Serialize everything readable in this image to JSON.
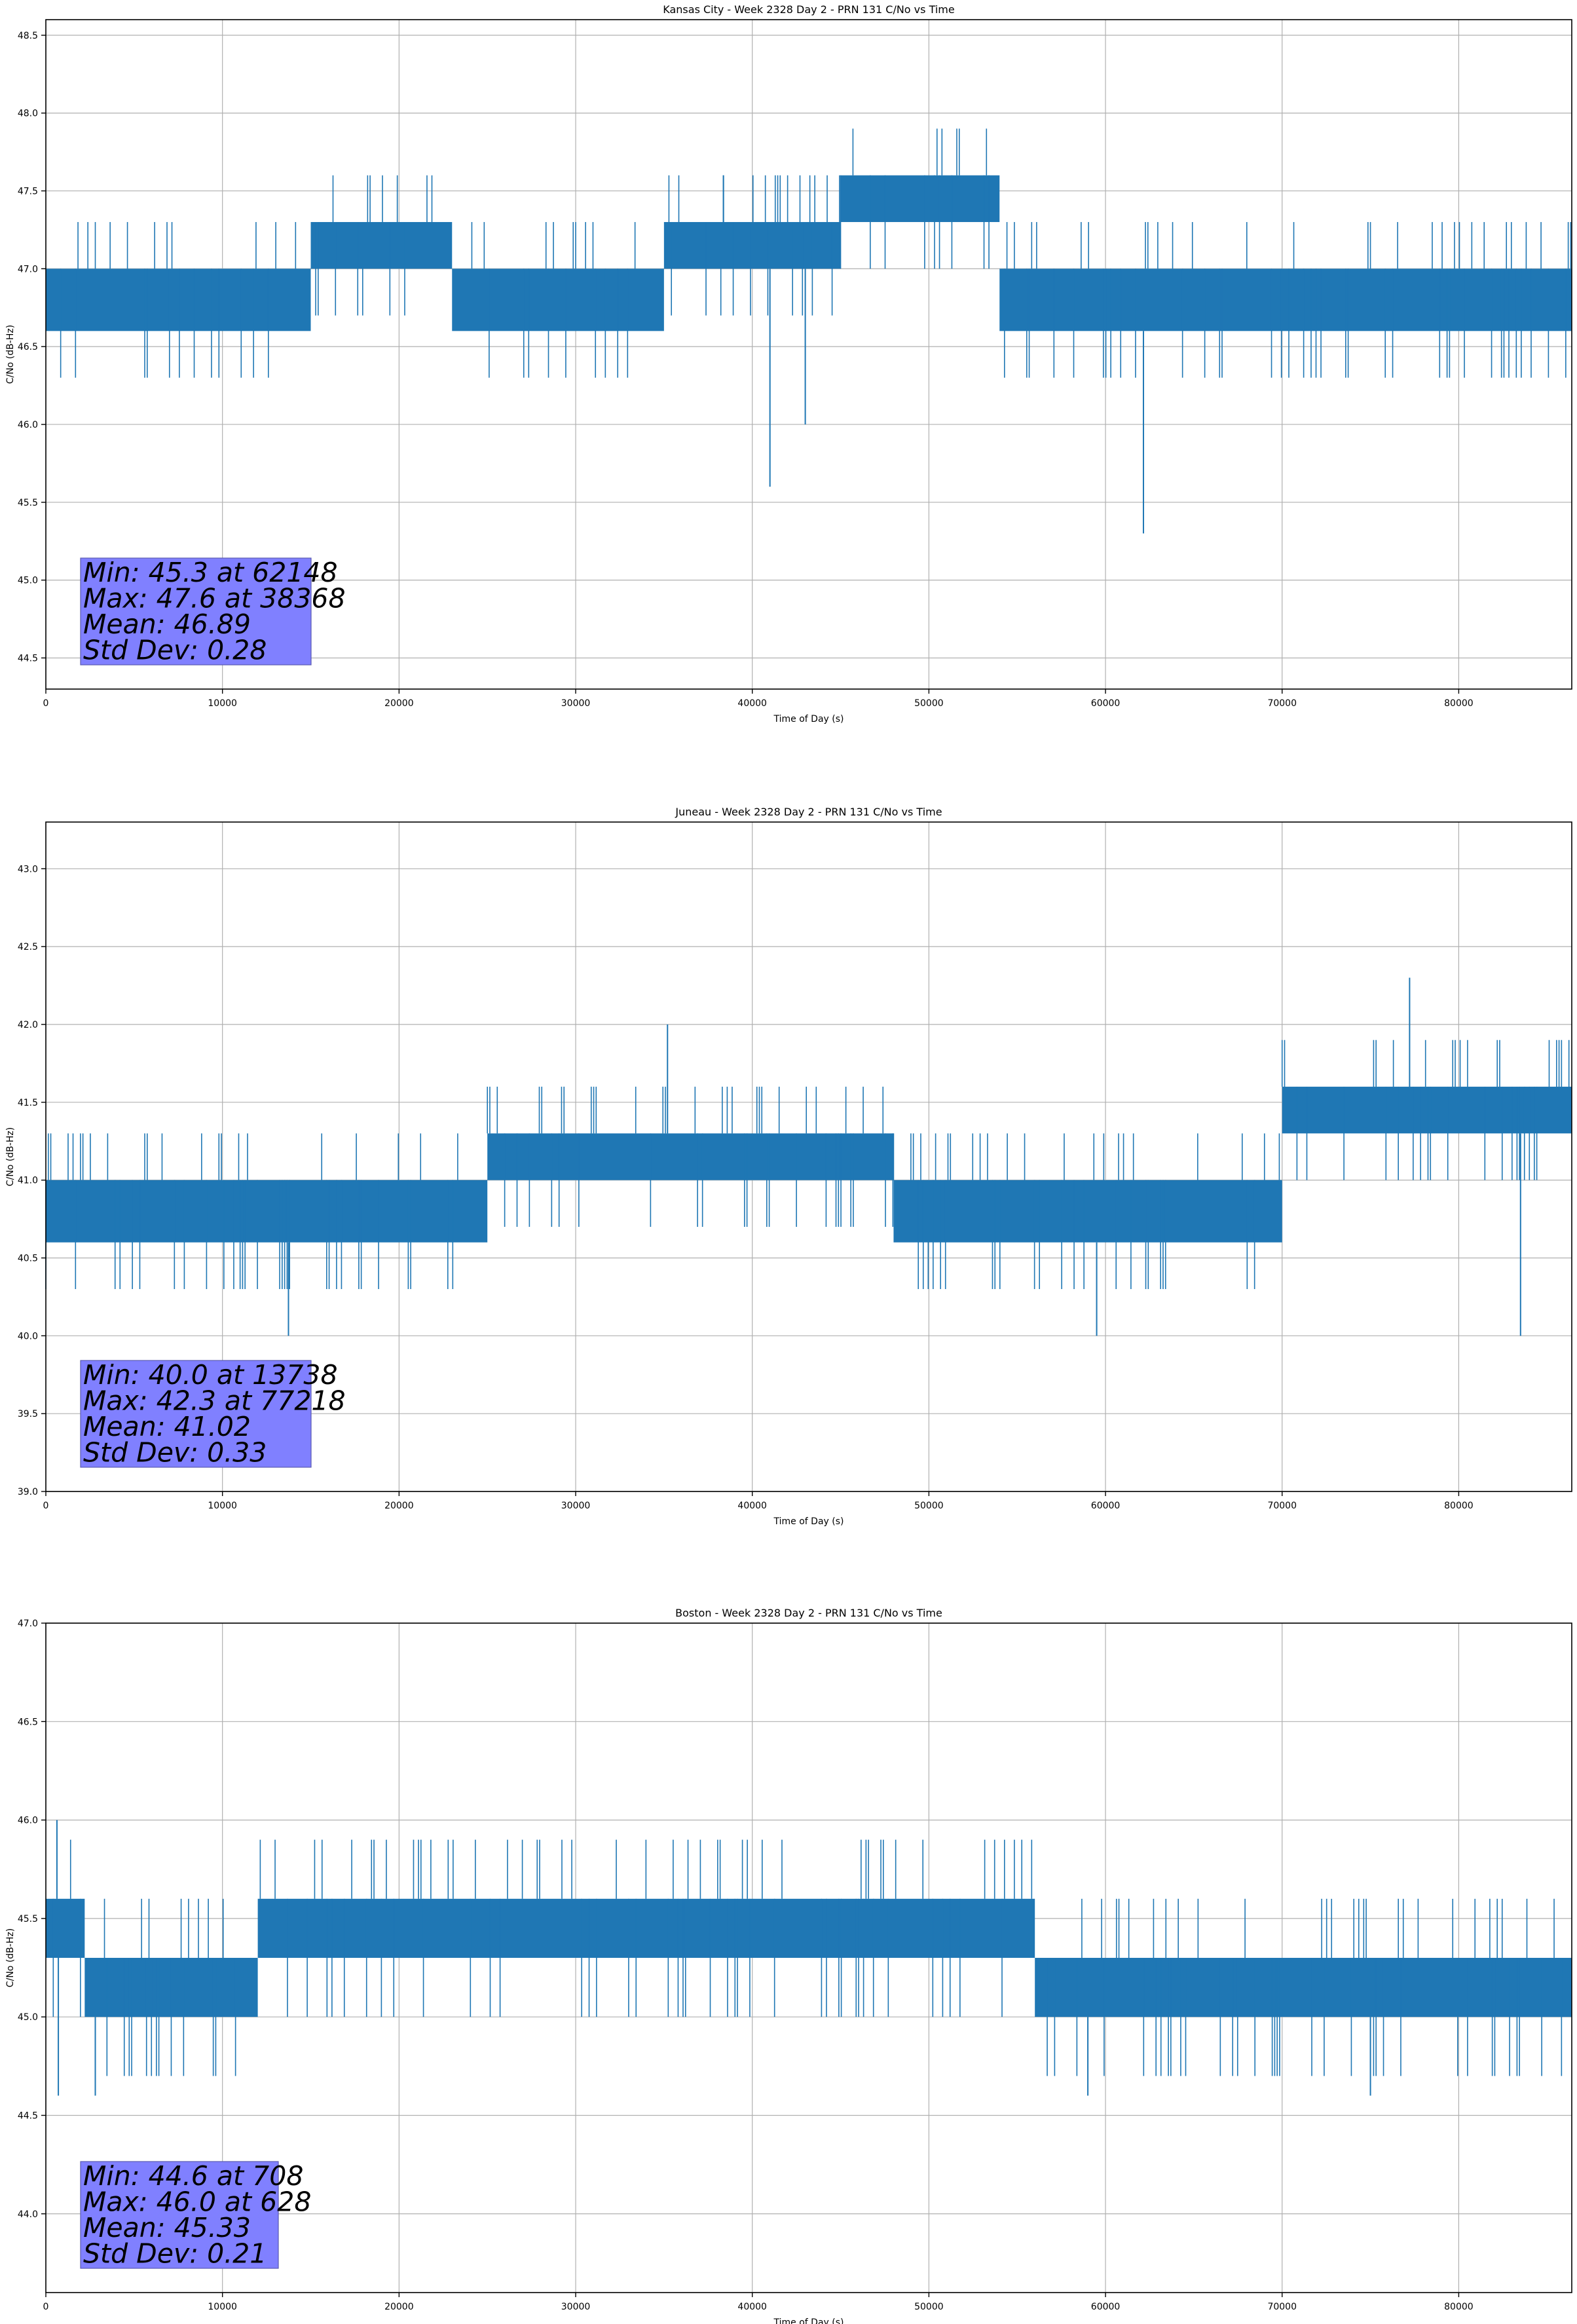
{
  "chart_data": [
    {
      "type": "line",
      "title": "Kansas City - Week 2328 Day 2 - PRN 131 C/No vs Time",
      "xlabel": "Time of Day (s)",
      "ylabel": "C/No (dB-Hz)",
      "xlim": [
        0,
        86400
      ],
      "ylim": [
        44.3,
        48.6
      ],
      "xticks": [
        0,
        10000,
        20000,
        30000,
        40000,
        50000,
        60000,
        70000,
        80000
      ],
      "yticks": [
        44.5,
        45.0,
        45.5,
        46.0,
        46.5,
        47.0,
        47.5,
        48.0,
        48.5
      ],
      "grid": true,
      "color": "#1f77b4",
      "series": [
        {
          "segments": [
            {
              "x0": 0,
              "x1": 15000,
              "low": 46.6,
              "high": 47.0
            },
            {
              "x0": 15000,
              "x1": 23000,
              "low": 47.0,
              "high": 47.3
            },
            {
              "x0": 23000,
              "x1": 35000,
              "low": 46.6,
              "high": 47.0
            },
            {
              "x0": 35000,
              "x1": 45000,
              "low": 47.0,
              "high": 47.3
            },
            {
              "x0": 45000,
              "x1": 54000,
              "low": 47.3,
              "high": 47.6
            },
            {
              "x0": 54000,
              "x1": 86400,
              "low": 46.6,
              "high": 47.0
            }
          ],
          "spikes": [
            {
              "x": 41000,
              "y": 45.6
            },
            {
              "x": 43000,
              "y": 46.0
            },
            {
              "x": 62148,
              "y": 45.3
            },
            {
              "x": 38368,
              "y": 47.6
            }
          ]
        }
      ],
      "stats": {
        "min": "Min: 45.3 at 62148",
        "max": "Max: 47.6 at 38368",
        "mean": "Mean: 46.89",
        "std": "Std Dev: 0.28"
      }
    },
    {
      "type": "line",
      "title": "Juneau - Week 2328 Day 2 - PRN 131 C/No vs Time",
      "xlabel": "Time of Day (s)",
      "ylabel": "C/No (dB-Hz)",
      "xlim": [
        0,
        86400
      ],
      "ylim": [
        39.0,
        43.3
      ],
      "xticks": [
        0,
        10000,
        20000,
        30000,
        40000,
        50000,
        60000,
        70000,
        80000
      ],
      "yticks": [
        39.0,
        39.5,
        40.0,
        40.5,
        41.0,
        41.5,
        42.0,
        42.5,
        43.0
      ],
      "grid": true,
      "color": "#1f77b4",
      "series": [
        {
          "segments": [
            {
              "x0": 0,
              "x1": 11000,
              "low": 40.6,
              "high": 41.0
            },
            {
              "x0": 11000,
              "x1": 25000,
              "low": 40.6,
              "high": 41.0
            },
            {
              "x0": 25000,
              "x1": 48000,
              "low": 41.0,
              "high": 41.3
            },
            {
              "x0": 48000,
              "x1": 70000,
              "low": 40.6,
              "high": 41.0
            },
            {
              "x0": 70000,
              "x1": 86400,
              "low": 41.3,
              "high": 41.6
            }
          ],
          "spikes": [
            {
              "x": 13738,
              "y": 40.0
            },
            {
              "x": 59500,
              "y": 40.0
            },
            {
              "x": 83500,
              "y": 40.0
            },
            {
              "x": 77218,
              "y": 42.3
            },
            {
              "x": 35200,
              "y": 42.0
            }
          ]
        }
      ],
      "stats": {
        "min": "Min: 40.0 at 13738",
        "max": "Max: 42.3 at 77218",
        "mean": "Mean: 41.02",
        "std": "Std Dev: 0.33"
      }
    },
    {
      "type": "line",
      "title": "Boston - Week 2328 Day 2 - PRN 131 C/No vs Time",
      "xlabel": "Time of Day (s)",
      "ylabel": "C/No (dB-Hz)",
      "xlim": [
        0,
        86400
      ],
      "ylim": [
        43.6,
        47.0
      ],
      "xticks": [
        0,
        10000,
        20000,
        30000,
        40000,
        50000,
        60000,
        70000,
        80000
      ],
      "yticks": [
        44.0,
        44.5,
        45.0,
        45.5,
        46.0,
        46.5,
        47.0
      ],
      "grid": true,
      "color": "#1f77b4",
      "series": [
        {
          "segments": [
            {
              "x0": 0,
              "x1": 2200,
              "low": 45.3,
              "high": 45.6
            },
            {
              "x0": 2200,
              "x1": 12000,
              "low": 45.0,
              "high": 45.3
            },
            {
              "x0": 12000,
              "x1": 56000,
              "low": 45.3,
              "high": 45.6
            },
            {
              "x0": 56000,
              "x1": 86400,
              "low": 45.0,
              "high": 45.3
            }
          ],
          "spikes": [
            {
              "x": 708,
              "y": 44.6
            },
            {
              "x": 628,
              "y": 46.0
            },
            {
              "x": 2800,
              "y": 44.6
            },
            {
              "x": 59000,
              "y": 44.6
            },
            {
              "x": 75000,
              "y": 44.6
            }
          ]
        }
      ],
      "stats": {
        "min": "Min: 44.6 at 708",
        "max": "Max: 46.0 at 628",
        "mean": "Mean: 45.33",
        "std": "Std Dev: 0.21"
      }
    }
  ]
}
